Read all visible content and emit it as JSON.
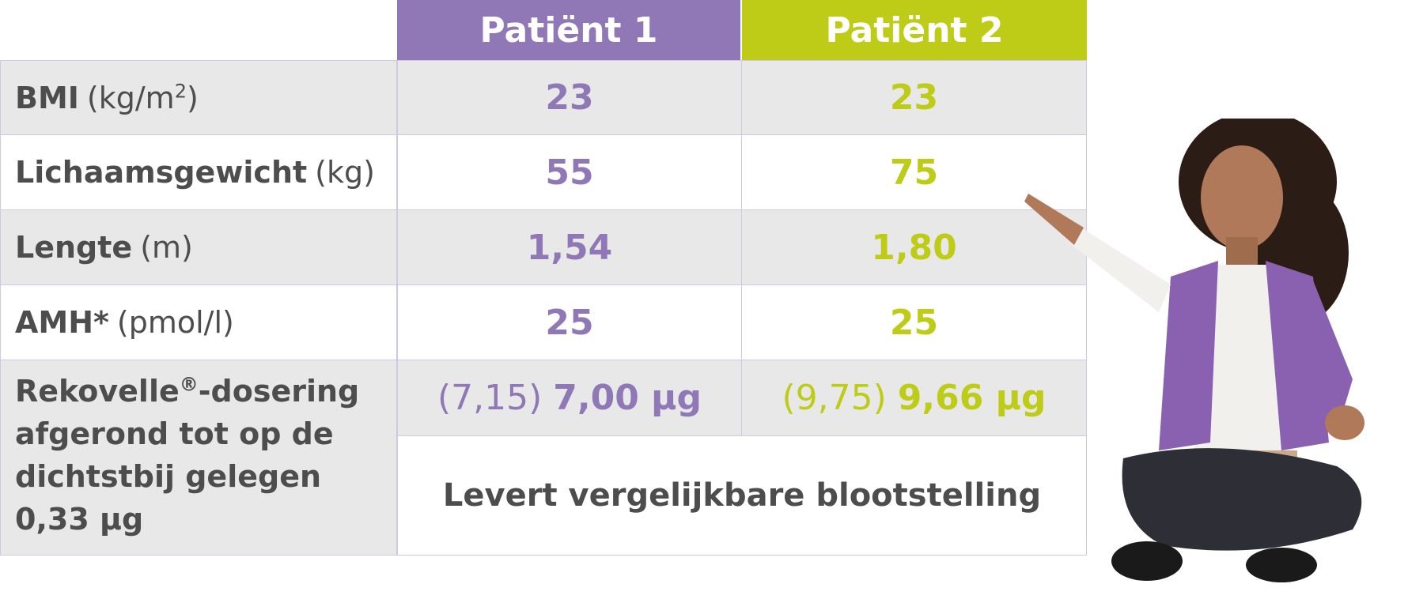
{
  "header": {
    "patient1": "Patiënt 1",
    "patient2": "Patiënt 2"
  },
  "rows": [
    {
      "label": "BMI",
      "unit_pre": "(kg/m",
      "unit_sup": "2",
      "unit_post": ")",
      "p1": "23",
      "p2": "23"
    },
    {
      "label": "Lichaamsgewicht",
      "unit": "(kg)",
      "p1": "55",
      "p2": "75"
    },
    {
      "label": "Lengte",
      "unit": "(m)",
      "p1": "1,54",
      "p2": "1,80"
    },
    {
      "label": "AMH*",
      "unit": "(pmol/l)",
      "p1": "25",
      "p2": "25"
    }
  ],
  "dosing": {
    "label_line1_pre": "Rekovelle",
    "label_line1_sup": "®",
    "label_line1_post": "-dosering",
    "label_line2": "afgerond tot op de",
    "label_line3": "dichtstbij gelegen",
    "label_line4": "0,33 µg",
    "p1_raw": "(7,15)",
    "p1_dose": "7,00 µg",
    "p2_raw": "(9,75)",
    "p2_dose": "9,66 µg",
    "note": "Levert vergelijkbare blootstelling"
  },
  "colors": {
    "patient1": "#8f78b5",
    "patient2": "#bfcc17",
    "row_grey": "#e8e8e8",
    "text": "#4d4d4d",
    "border": "#cfc7e3"
  }
}
